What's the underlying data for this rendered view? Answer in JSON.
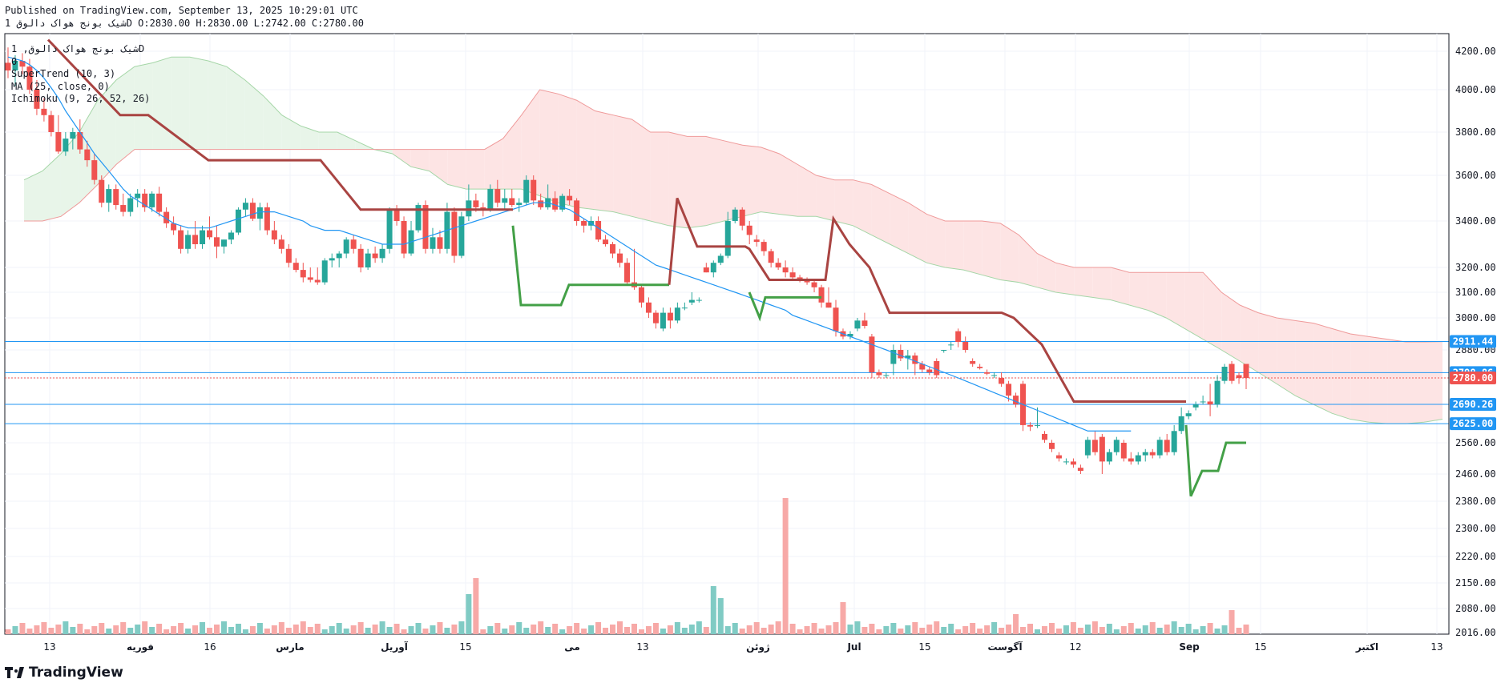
{
  "header": {
    "published": "Published on TradingView.com, September 13, 2025 10:29:01 UTC",
    "symbol_line": "شیک بونج هواک دالوق 1D O:2830.00 H:2830.00 L:2742.00 C:2780.00"
  },
  "legend": {
    "symbol": "شیک بونج هواک دالوق, 1D",
    "line2": "0",
    "supertrend": "SuperTrend (10, 3)",
    "ma": "MA (25, close, 0)",
    "ichimoku": "Ichimoku (9, 26, 52, 26)"
  },
  "brand": {
    "name": "TradingView",
    "icon": "tradingview-logo-icon"
  },
  "colors": {
    "up": "#26a69a",
    "down": "#ef5350",
    "supertrend_up": "#43a047",
    "supertrend_down": "#a94442",
    "ma": "#2196f3",
    "cloud_bull": "#e8f5e9",
    "cloud_bear": "#fde4e4",
    "hline": "#2196f3"
  },
  "chart_data": {
    "type": "candlestick",
    "y_axis": {
      "position": "right",
      "tick_labels": [
        "4200.00",
        "4000.00",
        "3800.00",
        "3600.00",
        "3400.00",
        "3200.00",
        "3100.00",
        "3000.00",
        "2880.00",
        "2780.00",
        "2560.00",
        "2460.00",
        "2380.00",
        "2300.00",
        "2220.00",
        "2150.00",
        "2080.00",
        "2016.00"
      ]
    },
    "x_axis": {
      "tick_labels": [
        "13",
        "فوریه",
        "16",
        "مارس",
        "آوریل",
        "15",
        "می",
        "13",
        "ژوئن",
        "Jul",
        "15",
        "آگوست",
        "12",
        "Sep",
        "15",
        "اکتبر",
        "13"
      ]
    },
    "price_labels": [
      {
        "value": "2911.44",
        "color": "#2196f3"
      },
      {
        "value": "2798.86",
        "color": "#2196f3"
      },
      {
        "value": "2780.00",
        "color": "#ef5350"
      },
      {
        "value": "2690.26",
        "color": "#2196f3"
      },
      {
        "value": "2625.00",
        "color": "#2196f3"
      }
    ],
    "horizontal_lines": [
      2911.44,
      2798.86,
      2690.26,
      2625.0
    ],
    "last_price": 2780.0,
    "candles": [
      {
        "o": 4140,
        "h": 4220,
        "l": 4060,
        "c": 4100
      },
      {
        "o": 4100,
        "h": 4180,
        "l": 4020,
        "c": 4150
      },
      {
        "o": 4150,
        "h": 4190,
        "l": 4080,
        "c": 4120
      },
      {
        "o": 4120,
        "h": 4160,
        "l": 3980,
        "c": 4000
      },
      {
        "o": 4000,
        "h": 4050,
        "l": 3880,
        "c": 3910
      },
      {
        "o": 3910,
        "h": 3960,
        "l": 3850,
        "c": 3880
      },
      {
        "o": 3880,
        "h": 3900,
        "l": 3780,
        "c": 3800
      },
      {
        "o": 3800,
        "h": 3880,
        "l": 3700,
        "c": 3710
      },
      {
        "o": 3710,
        "h": 3800,
        "l": 3690,
        "c": 3770
      },
      {
        "o": 3770,
        "h": 3820,
        "l": 3720,
        "c": 3800
      },
      {
        "o": 3800,
        "h": 3860,
        "l": 3700,
        "c": 3720
      },
      {
        "o": 3720,
        "h": 3760,
        "l": 3640,
        "c": 3670
      },
      {
        "o": 3670,
        "h": 3700,
        "l": 3560,
        "c": 3580
      },
      {
        "o": 3580,
        "h": 3600,
        "l": 3460,
        "c": 3480
      },
      {
        "o": 3480,
        "h": 3560,
        "l": 3440,
        "c": 3540
      },
      {
        "o": 3540,
        "h": 3560,
        "l": 3450,
        "c": 3470
      },
      {
        "o": 3470,
        "h": 3520,
        "l": 3420,
        "c": 3440
      },
      {
        "o": 3440,
        "h": 3520,
        "l": 3420,
        "c": 3500
      },
      {
        "o": 3500,
        "h": 3540,
        "l": 3460,
        "c": 3520
      },
      {
        "o": 3520,
        "h": 3540,
        "l": 3440,
        "c": 3460
      },
      {
        "o": 3460,
        "h": 3530,
        "l": 3440,
        "c": 3520
      },
      {
        "o": 3520,
        "h": 3550,
        "l": 3420,
        "c": 3440
      },
      {
        "o": 3440,
        "h": 3460,
        "l": 3370,
        "c": 3390
      },
      {
        "o": 3390,
        "h": 3420,
        "l": 3340,
        "c": 3360
      },
      {
        "o": 3360,
        "h": 3380,
        "l": 3260,
        "c": 3280
      },
      {
        "o": 3280,
        "h": 3360,
        "l": 3260,
        "c": 3340
      },
      {
        "o": 3340,
        "h": 3400,
        "l": 3280,
        "c": 3300
      },
      {
        "o": 3300,
        "h": 3380,
        "l": 3280,
        "c": 3360
      },
      {
        "o": 3360,
        "h": 3420,
        "l": 3320,
        "c": 3330
      },
      {
        "o": 3330,
        "h": 3380,
        "l": 3240,
        "c": 3290
      },
      {
        "o": 3290,
        "h": 3320,
        "l": 3260,
        "c": 3320
      },
      {
        "o": 3320,
        "h": 3360,
        "l": 3300,
        "c": 3350
      },
      {
        "o": 3350,
        "h": 3460,
        "l": 3340,
        "c": 3450
      },
      {
        "o": 3450,
        "h": 3500,
        "l": 3420,
        "c": 3480
      },
      {
        "o": 3480,
        "h": 3500,
        "l": 3400,
        "c": 3410
      },
      {
        "o": 3410,
        "h": 3480,
        "l": 3360,
        "c": 3460
      },
      {
        "o": 3460,
        "h": 3480,
        "l": 3340,
        "c": 3360
      },
      {
        "o": 3360,
        "h": 3400,
        "l": 3300,
        "c": 3320
      },
      {
        "o": 3320,
        "h": 3340,
        "l": 3260,
        "c": 3280
      },
      {
        "o": 3280,
        "h": 3300,
        "l": 3200,
        "c": 3220
      },
      {
        "o": 3220,
        "h": 3240,
        "l": 3180,
        "c": 3190
      },
      {
        "o": 3190,
        "h": 3220,
        "l": 3140,
        "c": 3160
      },
      {
        "o": 3160,
        "h": 3200,
        "l": 3140,
        "c": 3150
      },
      {
        "o": 3150,
        "h": 3200,
        "l": 3130,
        "c": 3140
      },
      {
        "o": 3140,
        "h": 3240,
        "l": 3130,
        "c": 3230
      },
      {
        "o": 3230,
        "h": 3260,
        "l": 3200,
        "c": 3240
      },
      {
        "o": 3240,
        "h": 3270,
        "l": 3200,
        "c": 3260
      },
      {
        "o": 3260,
        "h": 3330,
        "l": 3240,
        "c": 3320
      },
      {
        "o": 3320,
        "h": 3340,
        "l": 3260,
        "c": 3280
      },
      {
        "o": 3280,
        "h": 3300,
        "l": 3180,
        "c": 3200
      },
      {
        "o": 3200,
        "h": 3280,
        "l": 3190,
        "c": 3260
      },
      {
        "o": 3260,
        "h": 3290,
        "l": 3220,
        "c": 3240
      },
      {
        "o": 3240,
        "h": 3300,
        "l": 3220,
        "c": 3280
      },
      {
        "o": 3280,
        "h": 3460,
        "l": 3260,
        "c": 3450
      },
      {
        "o": 3450,
        "h": 3470,
        "l": 3380,
        "c": 3400
      },
      {
        "o": 3400,
        "h": 3420,
        "l": 3240,
        "c": 3260
      },
      {
        "o": 3260,
        "h": 3400,
        "l": 3250,
        "c": 3360
      },
      {
        "o": 3360,
        "h": 3480,
        "l": 3350,
        "c": 3470
      },
      {
        "o": 3470,
        "h": 3490,
        "l": 3260,
        "c": 3280
      },
      {
        "o": 3280,
        "h": 3370,
        "l": 3260,
        "c": 3330
      },
      {
        "o": 3330,
        "h": 3360,
        "l": 3260,
        "c": 3280
      },
      {
        "o": 3280,
        "h": 3480,
        "l": 3260,
        "c": 3440
      },
      {
        "o": 3440,
        "h": 3460,
        "l": 3220,
        "c": 3250
      },
      {
        "o": 3250,
        "h": 3440,
        "l": 3240,
        "c": 3420
      },
      {
        "o": 3420,
        "h": 3560,
        "l": 3400,
        "c": 3490
      },
      {
        "o": 3490,
        "h": 3520,
        "l": 3440,
        "c": 3460
      },
      {
        "o": 3460,
        "h": 3480,
        "l": 3420,
        "c": 3450
      },
      {
        "o": 3450,
        "h": 3560,
        "l": 3440,
        "c": 3540
      },
      {
        "o": 3540,
        "h": 3580,
        "l": 3460,
        "c": 3480
      },
      {
        "o": 3480,
        "h": 3540,
        "l": 3450,
        "c": 3500
      },
      {
        "o": 3500,
        "h": 3540,
        "l": 3460,
        "c": 3470
      },
      {
        "o": 3470,
        "h": 3500,
        "l": 3440,
        "c": 3480
      },
      {
        "o": 3480,
        "h": 3600,
        "l": 3470,
        "c": 3580
      },
      {
        "o": 3580,
        "h": 3600,
        "l": 3470,
        "c": 3490
      },
      {
        "o": 3490,
        "h": 3520,
        "l": 3450,
        "c": 3460
      },
      {
        "o": 3460,
        "h": 3560,
        "l": 3450,
        "c": 3500
      },
      {
        "o": 3500,
        "h": 3530,
        "l": 3440,
        "c": 3450
      },
      {
        "o": 3450,
        "h": 3520,
        "l": 3440,
        "c": 3510
      },
      {
        "o": 3510,
        "h": 3540,
        "l": 3470,
        "c": 3490
      },
      {
        "o": 3490,
        "h": 3500,
        "l": 3380,
        "c": 3400
      },
      {
        "o": 3400,
        "h": 3410,
        "l": 3350,
        "c": 3380
      },
      {
        "o": 3380,
        "h": 3420,
        "l": 3360,
        "c": 3400
      },
      {
        "o": 3400,
        "h": 3420,
        "l": 3310,
        "c": 3320
      },
      {
        "o": 3320,
        "h": 3340,
        "l": 3290,
        "c": 3300
      },
      {
        "o": 3300,
        "h": 3310,
        "l": 3240,
        "c": 3260
      },
      {
        "o": 3260,
        "h": 3280,
        "l": 3200,
        "c": 3220
      },
      {
        "o": 3220,
        "h": 3240,
        "l": 3130,
        "c": 3140
      },
      {
        "o": 3140,
        "h": 3280,
        "l": 3110,
        "c": 3120
      },
      {
        "o": 3120,
        "h": 3130,
        "l": 3040,
        "c": 3060
      },
      {
        "o": 3060,
        "h": 3080,
        "l": 3000,
        "c": 3020
      },
      {
        "o": 3020,
        "h": 3030,
        "l": 2960,
        "c": 2980
      },
      {
        "o": 2960,
        "h": 3040,
        "l": 2950,
        "c": 3020
      },
      {
        "o": 3020,
        "h": 3040,
        "l": 2960,
        "c": 2990
      },
      {
        "o": 2990,
        "h": 3060,
        "l": 2980,
        "c": 3040
      },
      {
        "o": 3040,
        "h": 3060,
        "l": 3030,
        "c": 3040
      },
      {
        "o": 3060,
        "h": 3100,
        "l": 3050,
        "c": 3070
      },
      {
        "o": 3070,
        "h": 3080,
        "l": 3060,
        "c": 3070
      },
      {
        "o": 3200,
        "h": 3220,
        "l": 3180,
        "c": 3180
      },
      {
        "o": 3180,
        "h": 3230,
        "l": 3160,
        "c": 3220
      },
      {
        "o": 3220,
        "h": 3260,
        "l": 3210,
        "c": 3250
      },
      {
        "o": 3250,
        "h": 3440,
        "l": 3240,
        "c": 3400
      },
      {
        "o": 3400,
        "h": 3460,
        "l": 3390,
        "c": 3450
      },
      {
        "o": 3450,
        "h": 3460,
        "l": 3360,
        "c": 3380
      },
      {
        "o": 3380,
        "h": 3400,
        "l": 3300,
        "c": 3340
      },
      {
        "o": 3320,
        "h": 3340,
        "l": 3290,
        "c": 3310
      },
      {
        "o": 3310,
        "h": 3320,
        "l": 3250,
        "c": 3270
      },
      {
        "o": 3270,
        "h": 3280,
        "l": 3200,
        "c": 3220
      },
      {
        "o": 3220,
        "h": 3240,
        "l": 3190,
        "c": 3200
      },
      {
        "o": 3200,
        "h": 3230,
        "l": 3160,
        "c": 3180
      },
      {
        "o": 3180,
        "h": 3200,
        "l": 3150,
        "c": 3160
      },
      {
        "o": 3160,
        "h": 3170,
        "l": 3140,
        "c": 3150
      },
      {
        "o": 3150,
        "h": 3160,
        "l": 3130,
        "c": 3140
      },
      {
        "o": 3140,
        "h": 3150,
        "l": 3100,
        "c": 3120
      },
      {
        "o": 3120,
        "h": 3130,
        "l": 3040,
        "c": 3060
      },
      {
        "o": 3060,
        "h": 3120,
        "l": 3040,
        "c": 3040
      },
      {
        "o": 3040,
        "h": 3070,
        "l": 2930,
        "c": 2950
      },
      {
        "o": 2950,
        "h": 2960,
        "l": 2920,
        "c": 2930
      },
      {
        "o": 2930,
        "h": 2950,
        "l": 2920,
        "c": 2940
      },
      {
        "o": 2960,
        "h": 3000,
        "l": 2950,
        "c": 2990
      },
      {
        "o": 2990,
        "h": 3020,
        "l": 2960,
        "c": 2970
      },
      {
        "o": 2930,
        "h": 2940,
        "l": 2780,
        "c": 2800
      },
      {
        "o": 2800,
        "h": 2810,
        "l": 2780,
        "c": 2790
      },
      {
        "o": 2790,
        "h": 2800,
        "l": 2780,
        "c": 2790
      },
      {
        "o": 2830,
        "h": 2900,
        "l": 2790,
        "c": 2880
      },
      {
        "o": 2880,
        "h": 2900,
        "l": 2840,
        "c": 2850
      },
      {
        "o": 2850,
        "h": 2880,
        "l": 2810,
        "c": 2860
      },
      {
        "o": 2860,
        "h": 2870,
        "l": 2790,
        "c": 2830
      },
      {
        "o": 2830,
        "h": 2840,
        "l": 2800,
        "c": 2810
      },
      {
        "o": 2810,
        "h": 2820,
        "l": 2790,
        "c": 2800
      },
      {
        "o": 2840,
        "h": 2850,
        "l": 2780,
        "c": 2790
      },
      {
        "o": 2880,
        "h": 2880,
        "l": 2870,
        "c": 2880
      },
      {
        "o": 2900,
        "h": 2910,
        "l": 2880,
        "c": 2900
      },
      {
        "o": 2950,
        "h": 2960,
        "l": 2890,
        "c": 2910
      },
      {
        "o": 2910,
        "h": 2930,
        "l": 2870,
        "c": 2880
      },
      {
        "o": 2840,
        "h": 2850,
        "l": 2820,
        "c": 2830
      },
      {
        "o": 2820,
        "h": 2830,
        "l": 2810,
        "c": 2815
      },
      {
        "o": 2800,
        "h": 2810,
        "l": 2790,
        "c": 2795
      },
      {
        "o": 2790,
        "h": 2800,
        "l": 2780,
        "c": 2790
      },
      {
        "o": 2780,
        "h": 2800,
        "l": 2750,
        "c": 2760
      },
      {
        "o": 2760,
        "h": 2770,
        "l": 2700,
        "c": 2720
      },
      {
        "o": 2720,
        "h": 2730,
        "l": 2680,
        "c": 2690
      },
      {
        "o": 2760,
        "h": 2770,
        "l": 2600,
        "c": 2620
      },
      {
        "o": 2620,
        "h": 2630,
        "l": 2600,
        "c": 2615
      },
      {
        "o": 2620,
        "h": 2680,
        "l": 2610,
        "c": 2620
      },
      {
        "o": 2590,
        "h": 2600,
        "l": 2560,
        "c": 2570
      },
      {
        "o": 2560,
        "h": 2570,
        "l": 2530,
        "c": 2540
      },
      {
        "o": 2520,
        "h": 2530,
        "l": 2500,
        "c": 2510
      },
      {
        "o": 2500,
        "h": 2510,
        "l": 2490,
        "c": 2500
      },
      {
        "o": 2500,
        "h": 2510,
        "l": 2480,
        "c": 2490
      },
      {
        "o": 2480,
        "h": 2490,
        "l": 2460,
        "c": 2470
      },
      {
        "o": 2520,
        "h": 2580,
        "l": 2510,
        "c": 2570
      },
      {
        "o": 2570,
        "h": 2600,
        "l": 2520,
        "c": 2530
      },
      {
        "o": 2580,
        "h": 2590,
        "l": 2460,
        "c": 2500
      },
      {
        "o": 2500,
        "h": 2540,
        "l": 2490,
        "c": 2530
      },
      {
        "o": 2530,
        "h": 2580,
        "l": 2520,
        "c": 2570
      },
      {
        "o": 2560,
        "h": 2570,
        "l": 2500,
        "c": 2510
      },
      {
        "o": 2510,
        "h": 2530,
        "l": 2490,
        "c": 2500
      },
      {
        "o": 2500,
        "h": 2530,
        "l": 2490,
        "c": 2520
      },
      {
        "o": 2520,
        "h": 2540,
        "l": 2500,
        "c": 2530
      },
      {
        "o": 2530,
        "h": 2540,
        "l": 2510,
        "c": 2520
      },
      {
        "o": 2520,
        "h": 2580,
        "l": 2510,
        "c": 2570
      },
      {
        "o": 2570,
        "h": 2590,
        "l": 2520,
        "c": 2530
      },
      {
        "o": 2530,
        "h": 2620,
        "l": 2520,
        "c": 2600
      },
      {
        "o": 2600,
        "h": 2680,
        "l": 2590,
        "c": 2650
      },
      {
        "o": 2650,
        "h": 2670,
        "l": 2640,
        "c": 2660
      },
      {
        "o": 2680,
        "h": 2700,
        "l": 2670,
        "c": 2690
      },
      {
        "o": 2700,
        "h": 2720,
        "l": 2690,
        "c": 2700
      },
      {
        "o": 2700,
        "h": 2760,
        "l": 2650,
        "c": 2690
      },
      {
        "o": 2690,
        "h": 2790,
        "l": 2680,
        "c": 2770
      },
      {
        "o": 2770,
        "h": 2830,
        "l": 2760,
        "c": 2820
      },
      {
        "o": 2830,
        "h": 2840,
        "l": 2760,
        "c": 2770
      },
      {
        "o": 2790,
        "h": 2800,
        "l": 2760,
        "c": 2780
      },
      {
        "o": 2830,
        "h": 2830,
        "l": 2742,
        "c": 2780
      }
    ],
    "ma_values": [
      4170,
      4160,
      4150,
      4130,
      4100,
      4060,
      4010,
      3960,
      3900,
      3850,
      3800,
      3750,
      3700,
      3660,
      3620,
      3580,
      3540,
      3510,
      3490,
      3470,
      3450,
      3430,
      3410,
      3390,
      3380,
      3370,
      3370,
      3370,
      3370,
      3380,
      3390,
      3400,
      3410,
      3420,
      3430,
      3440,
      3440,
      3440,
      3430,
      3420,
      3410,
      3400,
      3380,
      3370,
      3360,
      3360,
      3360,
      3350,
      3340,
      3330,
      3320,
      3310,
      3300,
      3300,
      3300,
      3300,
      3310,
      3320,
      3330,
      3340,
      3350,
      3360,
      3370,
      3380,
      3390,
      3400,
      3410,
      3420,
      3430,
      3440,
      3450,
      3460,
      3470,
      3480,
      3480,
      3480,
      3470,
      3460,
      3450,
      3430,
      3410,
      3390,
      3370,
      3350,
      3330,
      3310,
      3290,
      3270,
      3250,
      3230,
      3210,
      3200,
      3190,
      3180,
      3170,
      3160,
      3150,
      3140,
      3130,
      3120,
      3110,
      3100,
      3090,
      3080,
      3070,
      3060,
      3050,
      3040,
      3030,
      3010,
      3000,
      2990,
      2980,
      2970,
      2960,
      2950,
      2940,
      2930,
      2920,
      2910,
      2900,
      2890,
      2880,
      2870,
      2860,
      2850,
      2840,
      2830,
      2820,
      2810,
      2800,
      2790,
      2780,
      2770,
      2760,
      2750,
      2740,
      2730,
      2720,
      2710,
      2700,
      2690,
      2680,
      2670,
      2660,
      2650,
      2640,
      2630,
      2620,
      2610,
      2600,
      2600,
      2600,
      2600,
      2600,
      2600,
      2600
    ],
    "volume_note": "volume histogram at bottom (no axis values printed)"
  }
}
